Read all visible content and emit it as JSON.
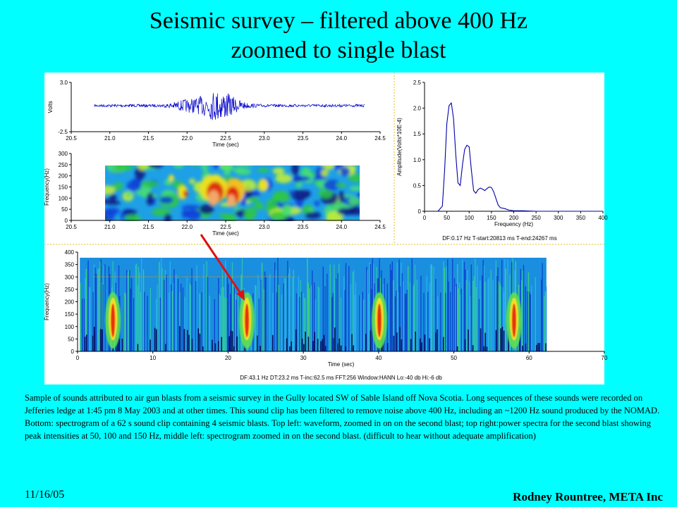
{
  "slide": {
    "title_line1": "Seismic survey – filtered above 400 Hz",
    "title_line2": "zoomed to single blast",
    "caption": "Sample of sounds attributed to air gun blasts from a seismic survey in the Gully located SW of Sable Island off Nova Scotia.  Long sequences of these sounds were recorded on Jefferies ledge at 1:45 pm 8 May 2003 and at other times.  This sound clip has been filtered to remove noise above 400 Hz, including an ~1200 Hz sound produced by the NOMAD.  Bottom: spectrogram of a 62 s sound clip containing 4 seismic blasts. Top left: waveform, zoomed in on on the second blast; top right:power spectra for the second blast showing peak intensities at 50, 100 and 150 Hz, middle left: spectrogram  zoomed in  on the second blast.  (difficult to hear without adequate amplification)",
    "date": "11/16/05",
    "author": "Rodney Rountree, META Inc"
  },
  "colors": {
    "background": "#00ffff",
    "waveform": "#0000cc",
    "arrow": "#e01010",
    "spectrum": "#0000aa"
  },
  "chart_data": [
    {
      "type": "line",
      "name_id": "waveform",
      "xlabel": "Time (sec)",
      "ylabel": "Volts",
      "xlim": [
        20.5,
        24.5
      ],
      "ylim": [
        -2.5,
        3.0
      ],
      "xticks": [
        "20.5",
        "21.0",
        "21.5",
        "22.0",
        "22.5",
        "23.0",
        "23.5",
        "24.0",
        "24.5"
      ],
      "yticks": [
        "3.0",
        "-2.5"
      ],
      "signal_range": [
        20.8,
        24.3
      ],
      "peak_time": 22.4
    },
    {
      "type": "heatmap",
      "name_id": "spectrogram-zoom",
      "xlabel": "Time (sec)",
      "ylabel": "Frequency(Hz)",
      "xlim": [
        20.5,
        24.5
      ],
      "ylim": [
        0,
        300
      ],
      "xticks": [
        "20.5",
        "21.0",
        "21.5",
        "22.0",
        "22.5",
        "23.0",
        "23.5",
        "24.0",
        "24.5"
      ],
      "yticks": [
        "0",
        "50",
        "100",
        "150",
        "200",
        "250",
        "300"
      ],
      "data_range": [
        20.8,
        24.25
      ],
      "data_fmax": 260
    },
    {
      "type": "line",
      "name_id": "power-spectrum",
      "xlabel": "Frequency (Hz)",
      "ylabel": "Amplitude(Volts*10E-4)",
      "xlim": [
        0,
        400
      ],
      "ylim": [
        0,
        2.5
      ],
      "xticks": [
        "0",
        "50",
        "100",
        "150",
        "200",
        "250",
        "300",
        "350",
        "400"
      ],
      "yticks": [
        "0",
        "0.5",
        "1.0",
        "1.5",
        "2.0",
        "2.5"
      ],
      "x": [
        30,
        40,
        45,
        50,
        55,
        60,
        65,
        70,
        75,
        80,
        85,
        90,
        95,
        100,
        105,
        110,
        115,
        120,
        125,
        130,
        135,
        140,
        145,
        150,
        155,
        160,
        165,
        170,
        180,
        190,
        200,
        220,
        250,
        280,
        300,
        350,
        400
      ],
      "y": [
        0,
        0.1,
        0.8,
        1.7,
        2.05,
        2.1,
        1.8,
        1.1,
        0.55,
        0.5,
        0.9,
        1.2,
        1.28,
        1.25,
        0.8,
        0.4,
        0.35,
        0.42,
        0.45,
        0.43,
        0.4,
        0.44,
        0.47,
        0.46,
        0.38,
        0.25,
        0.12,
        0.07,
        0.05,
        0.02,
        0.01,
        0.01,
        0,
        0,
        0,
        0,
        0
      ],
      "footer": "DF:0.17 Hz     T-start:20813 ms     T-end:24267 ms"
    },
    {
      "type": "heatmap",
      "name_id": "spectrogram-full",
      "xlabel": "Time (sec)",
      "ylabel": "Frequency(Hz)",
      "xlim": [
        0,
        70
      ],
      "ylim": [
        0,
        400
      ],
      "xticks": [
        "0",
        "10",
        "20",
        "30",
        "40",
        "50",
        "60",
        "70"
      ],
      "yticks": [
        "0",
        "50",
        "100",
        "150",
        "200",
        "250",
        "300",
        "350",
        "400"
      ],
      "data_range": [
        0.3,
        62.3
      ],
      "blast_times": [
        4.7,
        22.5,
        40.1,
        58.0
      ],
      "footer": "DF:43.1 Hz     DT:23.2 ms     T-inc:62.5 ms     FFT:256     Window:HANN     Lo:-40 db     Hi:-6 db"
    }
  ]
}
